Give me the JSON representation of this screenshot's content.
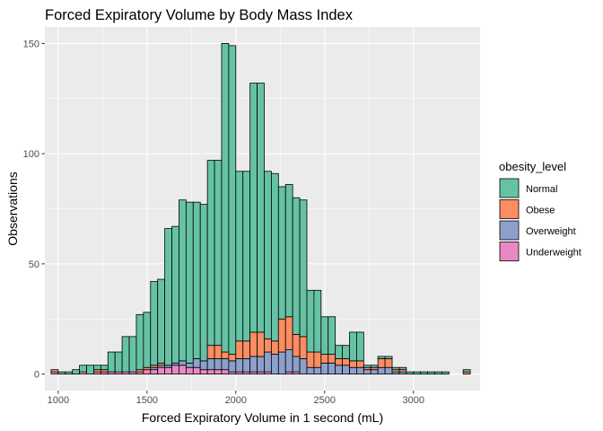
{
  "chart_data": {
    "type": "bar",
    "stacked": true,
    "title": "Forced Expiratory Volume by Body Mass Index",
    "xlabel": "Forced Expiratory Volume in 1 second (mL)",
    "ylabel": "Observations",
    "xlim": [
      925,
      3375
    ],
    "ylim": [
      -7.5,
      157.5
    ],
    "xticks": [
      1000,
      1500,
      2000,
      2500,
      3000
    ],
    "yticks": [
      0,
      50,
      100,
      150
    ],
    "bin_width": 40,
    "bin_centers": [
      980,
      1020,
      1060,
      1100,
      1140,
      1180,
      1220,
      1260,
      1300,
      1340,
      1380,
      1420,
      1460,
      1500,
      1540,
      1580,
      1620,
      1660,
      1700,
      1740,
      1780,
      1820,
      1860,
      1900,
      1940,
      1980,
      2020,
      2060,
      2100,
      2140,
      2180,
      2220,
      2260,
      2300,
      2340,
      2380,
      2420,
      2460,
      2500,
      2540,
      2580,
      2620,
      2660,
      2700,
      2740,
      2780,
      2820,
      2860,
      2900,
      2940,
      2980,
      3020,
      3060,
      3100,
      3140,
      3180,
      3220,
      3260,
      3300
    ],
    "legend": {
      "title": "obesity_level",
      "position": "right"
    },
    "grid": true,
    "series": [
      {
        "name": "Underweight",
        "color": "#e78ac3",
        "values": [
          1,
          0,
          0,
          0,
          1,
          0,
          1,
          1,
          1,
          1,
          1,
          1,
          1,
          2,
          2,
          3,
          3,
          4,
          4,
          3,
          3,
          2,
          2,
          2,
          2,
          1,
          1,
          1,
          1,
          1,
          1,
          0,
          0,
          1,
          1,
          0,
          0,
          0,
          0,
          0,
          0,
          0,
          0,
          0,
          0,
          0,
          0,
          0,
          0,
          0,
          0,
          0,
          0,
          0,
          0,
          0,
          0,
          0,
          0
        ]
      },
      {
        "name": "Overweight",
        "color": "#8da0cb",
        "values": [
          0,
          0,
          0,
          0,
          0,
          0,
          0,
          0,
          0,
          0,
          0,
          0,
          0,
          0,
          1,
          1,
          1,
          1,
          2,
          2,
          4,
          4,
          5,
          5,
          5,
          5,
          6,
          6,
          7,
          7,
          9,
          9,
          10,
          10,
          7,
          7,
          3,
          3,
          5,
          5,
          4,
          4,
          3,
          3,
          2,
          2,
          3,
          3,
          1,
          1,
          0,
          0,
          0,
          0,
          0,
          0,
          0,
          0,
          0
        ]
      },
      {
        "name": "Obese",
        "color": "#fc8d62",
        "values": [
          1,
          0,
          0,
          0,
          0,
          0,
          1,
          1,
          0,
          0,
          0,
          0,
          1,
          1,
          1,
          1,
          0,
          0,
          0,
          0,
          0,
          0,
          6,
          6,
          3,
          3,
          8,
          8,
          11,
          11,
          6,
          6,
          15,
          15,
          10,
          10,
          7,
          7,
          4,
          4,
          3,
          3,
          3,
          3,
          1,
          1,
          4,
          4,
          1,
          1,
          0,
          0,
          0,
          0,
          0,
          0,
          0,
          0,
          1
        ]
      },
      {
        "name": "Normal",
        "color": "#66c2a5",
        "values": [
          0,
          1,
          1,
          2,
          3,
          4,
          2,
          2,
          9,
          9,
          16,
          16,
          25,
          25,
          38,
          38,
          62,
          62,
          73,
          73,
          71,
          71,
          84,
          84,
          140,
          140,
          77,
          77,
          113,
          113,
          76,
          76,
          60,
          60,
          62,
          62,
          28,
          28,
          17,
          17,
          6,
          6,
          13,
          13,
          1,
          1,
          1,
          1,
          1,
          1,
          1,
          1,
          1,
          1,
          1,
          1,
          0,
          0,
          1
        ]
      }
    ]
  }
}
